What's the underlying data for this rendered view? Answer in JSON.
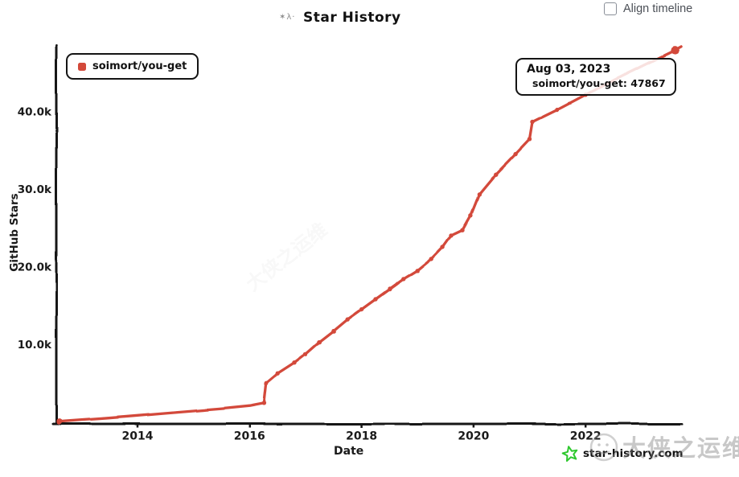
{
  "header": {
    "logo_glyphs": "✶λ·",
    "title": "Star History",
    "align_timeline": {
      "label": "Align timeline",
      "checked": false
    }
  },
  "legend": {
    "label": "soimort/you-get"
  },
  "tooltip": {
    "date": "Aug 03, 2023",
    "repo": "soimort/you-get",
    "stars": "47867"
  },
  "footer": {
    "brand": "star-history.com"
  },
  "watermark": {
    "text": "大侠之运维"
  },
  "colors": {
    "line": "#d3493a",
    "axis": "#141414",
    "tick_label": "#1a1a1a",
    "brand_green": "#2ec82e",
    "watermark_gray": "#bdbdbd",
    "checkbox_label": "#4b4f56"
  },
  "chart_data": {
    "type": "line",
    "title": "Star History",
    "xlabel": "Date",
    "ylabel": "GitHub Stars",
    "x_ticks": [
      2014,
      2016,
      2018,
      2020,
      2022
    ],
    "y_ticks": [
      {
        "value": 10000,
        "label": "10.0k"
      },
      {
        "value": 20000,
        "label": "20.0k"
      },
      {
        "value": 30000,
        "label": "30.0k"
      },
      {
        "value": 40000,
        "label": "40.0k"
      }
    ],
    "x_range": [
      2012.55,
      2023.72
    ],
    "y_range": [
      0,
      48500
    ],
    "grid": false,
    "legend_position": "top-left",
    "series": [
      {
        "name": "soimort/you-get",
        "color": "#d3493a",
        "points": [
          [
            2012.6,
            30
          ],
          [
            2013.0,
            250
          ],
          [
            2013.5,
            500
          ],
          [
            2014.0,
            800
          ],
          [
            2014.5,
            1100
          ],
          [
            2015.0,
            1400
          ],
          [
            2015.5,
            1700
          ],
          [
            2016.0,
            2050
          ],
          [
            2016.26,
            2400
          ],
          [
            2016.3,
            5000
          ],
          [
            2016.5,
            6200
          ],
          [
            2016.8,
            7600
          ],
          [
            2017.0,
            8700
          ],
          [
            2017.25,
            10300
          ],
          [
            2017.5,
            11700
          ],
          [
            2017.75,
            13200
          ],
          [
            2018.0,
            14500
          ],
          [
            2018.25,
            15800
          ],
          [
            2018.5,
            17100
          ],
          [
            2018.75,
            18400
          ],
          [
            2019.0,
            19500
          ],
          [
            2019.25,
            21000
          ],
          [
            2019.45,
            22500
          ],
          [
            2019.6,
            24000
          ],
          [
            2019.8,
            24700
          ],
          [
            2019.95,
            26600
          ],
          [
            2020.1,
            29300
          ],
          [
            2020.4,
            31900
          ],
          [
            2020.75,
            34500
          ],
          [
            2021.0,
            36400
          ],
          [
            2021.05,
            38600
          ],
          [
            2021.5,
            40200
          ],
          [
            2022.0,
            42100
          ],
          [
            2022.5,
            44000
          ],
          [
            2023.0,
            45800
          ],
          [
            2023.59,
            47867
          ],
          [
            2023.7,
            48300
          ]
        ],
        "highlight_point": {
          "x": 2023.59,
          "stars": 47867
        }
      }
    ]
  }
}
